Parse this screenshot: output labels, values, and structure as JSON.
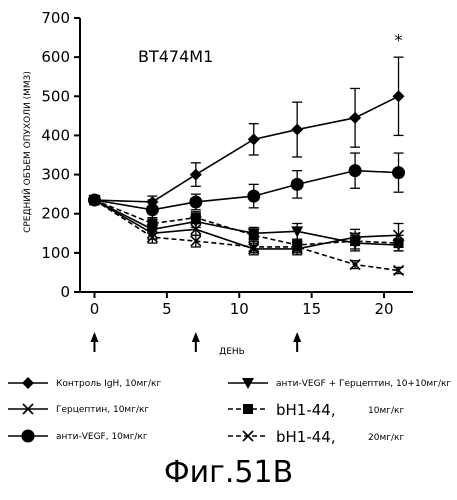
{
  "chart_data": {
    "type": "line",
    "title": "BT474M1",
    "xlabel": "ДЕНЬ",
    "ylabel": "СРЕДНИЙ ОБЪЕМ ОПУХОЛИ (MM3)",
    "xlim": [
      -1,
      22
    ],
    "ylim": [
      0,
      700
    ],
    "x_ticks": [
      0,
      5,
      10,
      15,
      20
    ],
    "y_ticks": [
      0,
      100,
      200,
      300,
      400,
      500,
      600,
      700
    ],
    "dosing_days": [
      0,
      7,
      14
    ],
    "annotation": "*",
    "annotation_x": 21,
    "annotation_y": 630,
    "series": [
      {
        "name": "Контроль IgH, 10мг/кг",
        "marker": "diamond",
        "x": [
          0,
          4,
          7,
          11,
          14,
          18,
          21
        ],
        "y": [
          235,
          230,
          300,
          390,
          415,
          445,
          500
        ],
        "err": [
          0,
          15,
          30,
          40,
          70,
          75,
          100
        ]
      },
      {
        "name": "Герцептин, 10мг/кг",
        "marker": "x",
        "x": [
          0,
          4,
          7,
          11,
          14,
          18,
          21
        ],
        "y": [
          235,
          150,
          160,
          110,
          110,
          140,
          145
        ],
        "err": [
          0,
          15,
          15,
          15,
          15,
          20,
          30
        ]
      },
      {
        "name": "анти-VEGF, 10мг/кг",
        "marker": "circle",
        "x": [
          0,
          4,
          7,
          11,
          14,
          18,
          21
        ],
        "y": [
          235,
          210,
          230,
          245,
          275,
          310,
          305
        ],
        "err": [
          0,
          25,
          20,
          30,
          35,
          45,
          50
        ]
      },
      {
        "name": "анти-VEGF + Герцептин, 10+10мг/кг",
        "marker": "triangle-down",
        "x": [
          0,
          4,
          7,
          11,
          14,
          18,
          21
        ],
        "y": [
          235,
          160,
          180,
          150,
          155,
          125,
          120
        ],
        "err": [
          0,
          10,
          15,
          15,
          20,
          20,
          15
        ]
      },
      {
        "name": "bH1-44,",
        "dose": "10мг/кг",
        "marker": "square",
        "x": [
          0,
          4,
          7,
          11,
          14,
          18,
          21
        ],
        "y": [
          235,
          175,
          190,
          145,
          120,
          130,
          125
        ],
        "err": [
          0,
          15,
          15,
          15,
          15,
          20,
          20
        ]
      },
      {
        "name": "bH1-44,",
        "dose": "20мг/кг",
        "marker": "x-dashed",
        "x": [
          0,
          4,
          7,
          11,
          14,
          18,
          21
        ],
        "y": [
          235,
          140,
          130,
          115,
          115,
          70,
          55
        ],
        "err": [
          0,
          15,
          15,
          15,
          15,
          10,
          8
        ]
      }
    ]
  },
  "caption": "Фиг.51B"
}
